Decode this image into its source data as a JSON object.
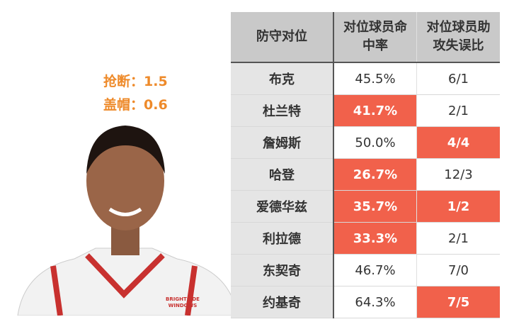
{
  "stats": {
    "steals": "抢断：1.5",
    "blocks": "盖帽：0.6"
  },
  "table": {
    "headers": [
      "防守对位",
      "对位球员命中率",
      "对位球员助攻失误比"
    ],
    "rows": [
      {
        "name": "布克",
        "fg": "45.5%",
        "ast_to": "6/1",
        "fg_hl": false,
        "ast_hl": false
      },
      {
        "name": "杜兰特",
        "fg": "41.7%",
        "ast_to": "2/1",
        "fg_hl": true,
        "ast_hl": false
      },
      {
        "name": "詹姆斯",
        "fg": "50.0%",
        "ast_to": "4/4",
        "fg_hl": false,
        "ast_hl": true
      },
      {
        "name": "哈登",
        "fg": "26.7%",
        "ast_to": "12/3",
        "fg_hl": true,
        "ast_hl": false
      },
      {
        "name": "爱德华兹",
        "fg": "35.7%",
        "ast_to": "1/2",
        "fg_hl": true,
        "ast_hl": true
      },
      {
        "name": "利拉德",
        "fg": "33.3%",
        "ast_to": "2/1",
        "fg_hl": true,
        "ast_hl": false
      },
      {
        "name": "东契奇",
        "fg": "46.7%",
        "ast_to": "7/0",
        "fg_hl": false,
        "ast_hl": false
      },
      {
        "name": "约基奇",
        "fg": "64.3%",
        "ast_to": "7/5",
        "fg_hl": false,
        "ast_hl": true
      }
    ]
  },
  "colors": {
    "highlight": "#f1614b",
    "stat_text": "#ee8a2a"
  },
  "photo": {
    "jersey_sponsor": "BRIGHTSIDE WINDOWS"
  }
}
